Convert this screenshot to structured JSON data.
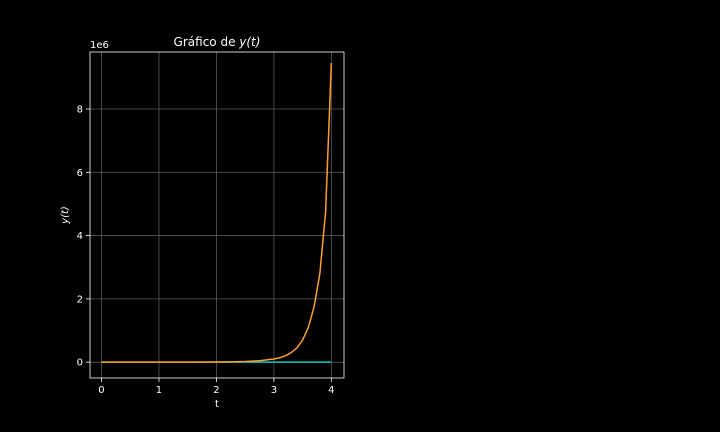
{
  "chart_data": {
    "type": "line",
    "title_prefix": "Gráfico de ",
    "title_math": "y(t)",
    "xlabel": "t",
    "ylabel": "y(t)",
    "offset_label": "1e6",
    "xlim": [
      -0.2,
      4.22
    ],
    "ylim": [
      -0.5,
      9.8
    ],
    "x_ticks": [
      0,
      1,
      2,
      3,
      4
    ],
    "x_tick_labels": [
      "0",
      "1",
      "2",
      "3",
      "4"
    ],
    "y_ticks": [
      0,
      2,
      4,
      6,
      8
    ],
    "y_tick_labels": [
      "0",
      "2",
      "4",
      "6",
      "8"
    ],
    "grid": true,
    "y_unit_multiplier": 1000000,
    "series": [
      {
        "color": "#00c8c8",
        "x": [
          0,
          0.5,
          1,
          1.5,
          2,
          2.5,
          3,
          3.5,
          4
        ],
        "y": [
          0,
          0,
          0,
          0,
          0,
          0,
          0,
          0,
          0
        ]
      },
      {
        "color": "#ffa02a",
        "x": [
          0,
          0.5,
          1,
          1.5,
          2,
          2.25,
          2.5,
          2.75,
          3,
          3.1,
          3.2,
          3.3,
          3.4,
          3.5,
          3.6,
          3.7,
          3.8,
          3.9,
          4
        ],
        "y": [
          0,
          2e-05,
          0.0002,
          0.0012,
          0.005,
          0.011,
          0.022,
          0.045,
          0.1,
          0.14,
          0.2,
          0.3,
          0.45,
          0.7,
          1.1,
          1.75,
          2.8,
          4.75,
          9.45
        ]
      }
    ]
  }
}
